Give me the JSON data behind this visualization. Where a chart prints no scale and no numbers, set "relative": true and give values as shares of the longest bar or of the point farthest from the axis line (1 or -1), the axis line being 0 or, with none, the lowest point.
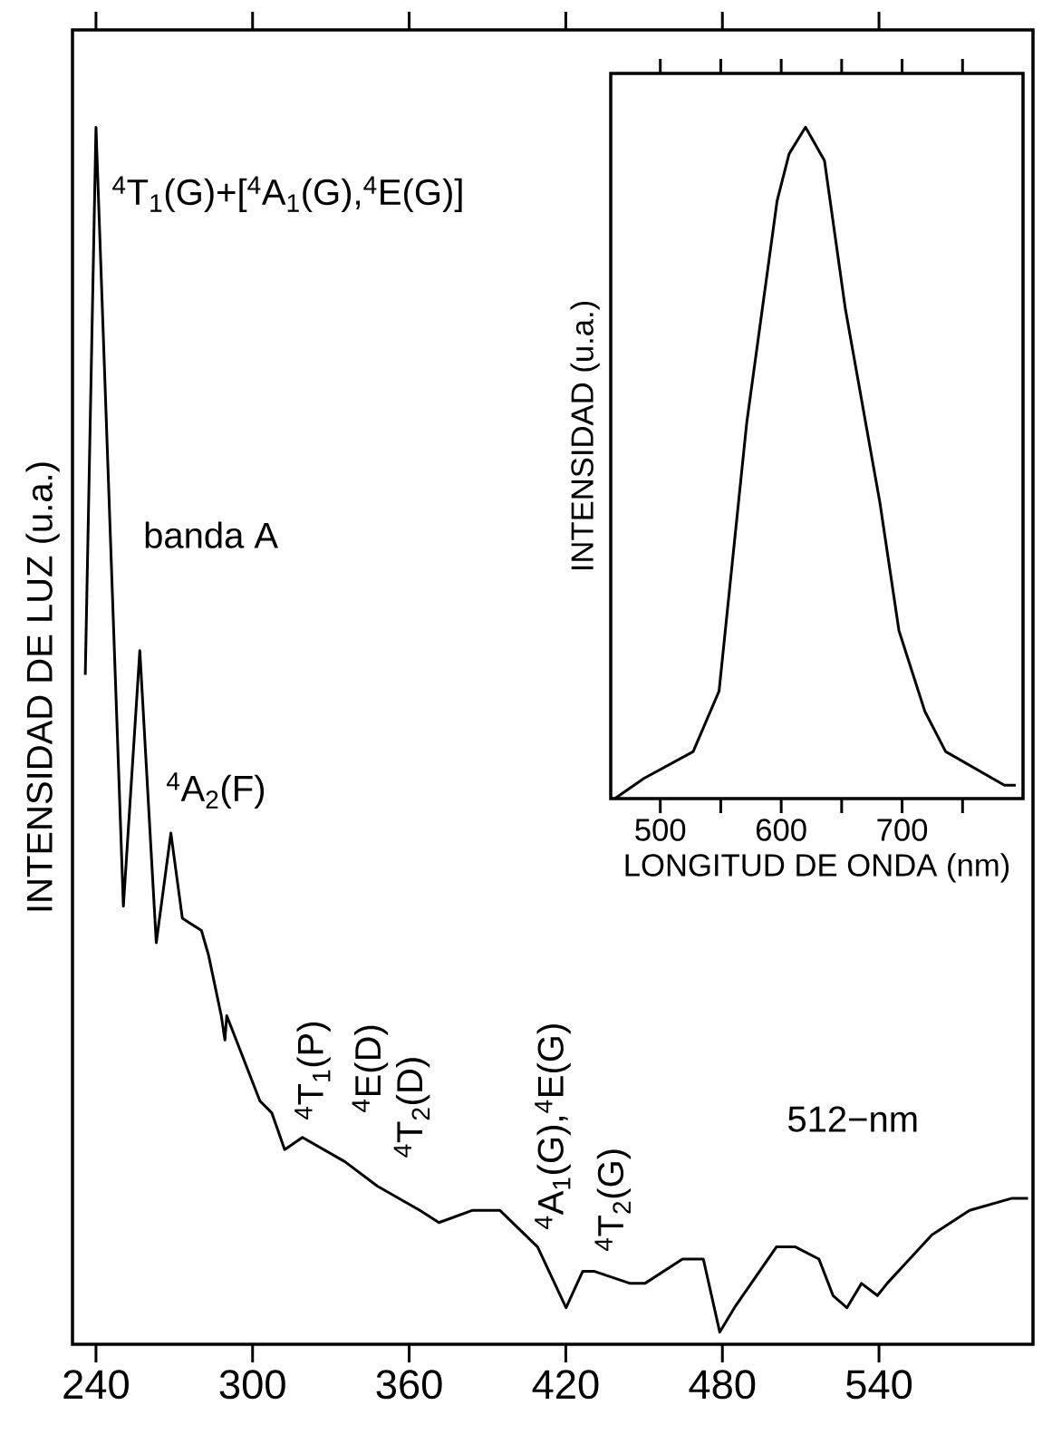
{
  "chart_data": [
    {
      "type": "line",
      "relative": true,
      "ylabel": "INTENSIDAD DE LUZ (u.a.)",
      "color": "#000000",
      "x": [
        235.9,
        240,
        250.5,
        256.8,
        263.1,
        268.7,
        273.1,
        280.4,
        283.1,
        288.0,
        289.4,
        290.1,
        302.8,
        307.4,
        312.3,
        319.1,
        335.4,
        347.8,
        364.1,
        371.4,
        384.1,
        394.8,
        409.2,
        420.1,
        426.5,
        430.8,
        444.7,
        450.3,
        464.7,
        472.7,
        479.0,
        484.6,
        500.7,
        508.0,
        517.0,
        522.4,
        527.7,
        533.3,
        539.4,
        543.1,
        560.3,
        574.7,
        591.0,
        597.1
      ],
      "values": [
        0.55,
        1.0,
        0.36,
        0.57,
        0.33,
        0.42,
        0.35,
        0.34,
        0.32,
        0.27,
        0.25,
        0.27,
        0.2,
        0.19,
        0.16,
        0.17,
        0.15,
        0.13,
        0.11,
        0.1,
        0.11,
        0.11,
        0.08,
        0.03,
        0.06,
        0.06,
        0.05,
        0.05,
        0.07,
        0.07,
        0.01,
        0.03,
        0.08,
        0.08,
        0.07,
        0.04,
        0.03,
        0.05,
        0.04,
        0.05,
        0.09,
        0.11,
        0.12,
        0.12
      ],
      "xlim": [
        231,
        599
      ],
      "xticks": [
        240,
        300,
        360,
        420,
        480,
        540
      ],
      "annotations": [
        "$^{4}$T$_{1}$(G)+[$^{4}$A$_{1}$(G),$^{4}$E(G)]",
        "banda A",
        "$^{4}$A$_{2}$(F)",
        "$^{4}$T$_{1}$(P)",
        "$^{4}$E(D)",
        "$^{4}$T$_{2}$(D)",
        "$^{4}$A$_{1}$(G),$^{4}$E(G)",
        "$^{4}$T$_{2}$(G)",
        "512−nm"
      ]
    },
    {
      "type": "line",
      "relative": true,
      "xlabel": "LONGITUD DE ONDA (nm)",
      "ylabel": "INTENSIDAD (u.a.)",
      "color": "#000000",
      "x": [
        462.4,
        486.4,
        527.2,
        548.6,
        571.5,
        596.6,
        606.5,
        620.1,
        635.8,
        653.0,
        681.7,
        697.4,
        718.8,
        736.0,
        784.6,
        794.0
      ],
      "values": [
        0,
        0.03,
        0.07,
        0.16,
        0.56,
        0.89,
        0.96,
        1.0,
        0.95,
        0.73,
        0.44,
        0.25,
        0.13,
        0.07,
        0.02,
        0.02
      ],
      "xlim": [
        459,
        800
      ],
      "xticks": [
        500,
        {
          "value": 550,
          "label": null
        },
        600,
        {
          "value": 650,
          "label": null
        },
        700,
        {
          "value": 750,
          "label": null
        }
      ]
    }
  ]
}
